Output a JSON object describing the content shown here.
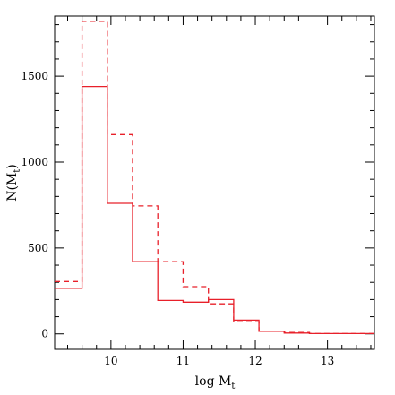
{
  "chart_data": {
    "type": "line",
    "step_style": "histogram",
    "xlabel": "log M_t",
    "ylabel": "N(M_t)",
    "xlim": [
      9.22,
      13.65
    ],
    "ylim": [
      -90,
      1850
    ],
    "x_ticks": [
      10,
      11,
      12,
      13
    ],
    "y_ticks": [
      0,
      500,
      1000,
      1500
    ],
    "bin_edges": [
      9.22,
      9.6,
      9.95,
      10.3,
      10.65,
      11.0,
      11.35,
      11.7,
      12.05,
      12.4,
      12.75,
      13.65
    ],
    "series": [
      {
        "style": "solid",
        "color": "#e8202a",
        "values": [
          265,
          1440,
          760,
          420,
          195,
          185,
          200,
          80,
          15,
          5,
          2
        ]
      },
      {
        "style": "dashed",
        "color": "#e8202a",
        "values": [
          305,
          1820,
          1160,
          745,
          420,
          275,
          175,
          70,
          15,
          8,
          2
        ]
      }
    ]
  }
}
